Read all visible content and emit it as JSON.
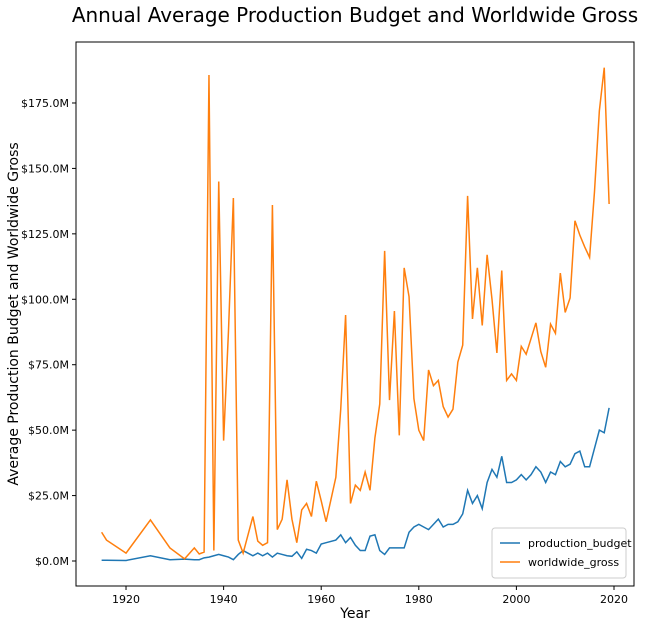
{
  "chart_data": {
    "type": "line",
    "title": "Annual Average Production Budget and Worldwide Gross",
    "x_label": "Year",
    "y_label": "Average Production Budget and Worldwide Gross",
    "x": [
      1915,
      1916,
      1920,
      1925,
      1929,
      1932,
      1934,
      1935,
      1936,
      1937,
      1938,
      1939,
      1940,
      1941,
      1942,
      1943,
      1944,
      1946,
      1947,
      1948,
      1949,
      1950,
      1951,
      1952,
      1953,
      1954,
      1955,
      1956,
      1957,
      1958,
      1959,
      1960,
      1961,
      1963,
      1964,
      1965,
      1966,
      1967,
      1968,
      1969,
      1970,
      1971,
      1972,
      1973,
      1974,
      1975,
      1976,
      1977,
      1978,
      1979,
      1980,
      1981,
      1982,
      1983,
      1984,
      1985,
      1986,
      1987,
      1988,
      1989,
      1990,
      1991,
      1992,
      1993,
      1994,
      1995,
      1996,
      1997,
      1998,
      1999,
      2000,
      2001,
      2002,
      2003,
      2004,
      2005,
      2006,
      2007,
      2008,
      2009,
      2010,
      2011,
      2012,
      2013,
      2014,
      2015,
      2016,
      2017,
      2018,
      2019
    ],
    "series": [
      {
        "name": "production_budget",
        "color": "#1f77b4",
        "values": [
          0.3,
          0.3,
          0.2,
          2,
          0.5,
          0.7,
          0.5,
          0.5,
          1.2,
          1.5,
          2,
          2.5,
          2,
          1.5,
          0.5,
          2.5,
          4,
          2,
          3,
          2,
          3,
          1.5,
          3,
          2.5,
          2,
          1.8,
          3.5,
          1,
          4.5,
          4,
          3,
          6.5,
          7,
          8,
          10,
          7,
          9,
          6,
          4,
          4,
          9.5,
          10,
          4,
          2.5,
          5,
          5,
          5,
          5,
          11,
          13,
          14,
          13,
          12,
          14,
          16,
          13,
          14,
          14,
          15,
          18,
          27,
          22,
          25,
          20,
          30,
          35,
          32,
          40,
          30,
          30,
          31,
          33,
          31,
          33,
          36,
          34,
          30,
          34,
          33,
          38,
          36,
          37,
          41,
          42,
          36,
          36,
          43,
          50,
          49,
          58.5
        ]
      },
      {
        "name": "worldwide_gross",
        "color": "#ff7f0e",
        "values": [
          11,
          8,
          3,
          15.7,
          5,
          0.8,
          5,
          2.7,
          3.4,
          185.7,
          4,
          145,
          46,
          88,
          138.7,
          8,
          3,
          17,
          7.6,
          6,
          7,
          136,
          12,
          16,
          31,
          16,
          7,
          19.5,
          22,
          17,
          30.5,
          23,
          15,
          32,
          58,
          94,
          22,
          29,
          27,
          34,
          27,
          47,
          60,
          118.5,
          61.5,
          95.5,
          48,
          112,
          101,
          62,
          50,
          46,
          73,
          67,
          69,
          59,
          55,
          58,
          76,
          82.5,
          139.5,
          92.5,
          112,
          90,
          117,
          100,
          79.5,
          111,
          69,
          71.5,
          69,
          82,
          79,
          85,
          91,
          80,
          74,
          90.5,
          87,
          110,
          95,
          100.5,
          130,
          124.5,
          120,
          116,
          141,
          172,
          188.5,
          136.4
        ]
      }
    ],
    "xlim": [
      1909.75,
      2024.1
    ],
    "xticks": [
      1920,
      1940,
      1960,
      1980,
      2000,
      2020
    ],
    "ylim": [
      -9.55,
      198.3
    ],
    "yticks": [
      {
        "value": 0,
        "label": "$0.0M"
      },
      {
        "value": 25,
        "label": "$25.0M"
      },
      {
        "value": 50,
        "label": "$50.0M"
      },
      {
        "value": 75,
        "label": "$75.0M"
      },
      {
        "value": 100,
        "label": "$100.0M"
      },
      {
        "value": 125,
        "label": "$125.0M"
      },
      {
        "value": 150,
        "label": "$150.0M"
      },
      {
        "value": 175,
        "label": "$175.0M"
      }
    ],
    "legend": "lower right"
  }
}
